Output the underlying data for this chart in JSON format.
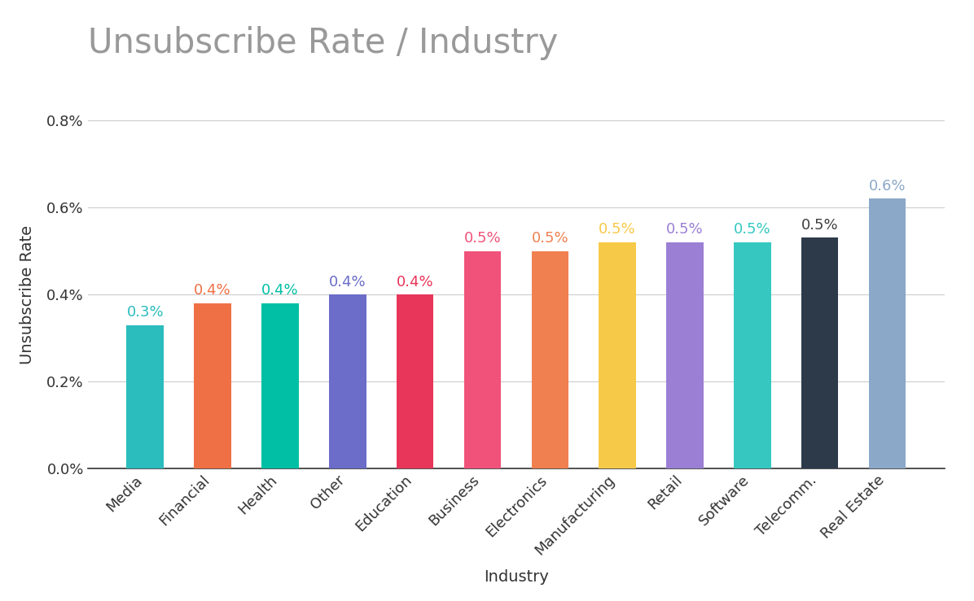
{
  "title": "Unsubscribe Rate / Industry",
  "categories": [
    "Media",
    "Financial",
    "Health",
    "Other",
    "Education",
    "Business",
    "Electronics",
    "Manufacturing",
    "Retail",
    "Software",
    "Telecomm.",
    "Real Estate"
  ],
  "values": [
    0.0033,
    0.0038,
    0.0038,
    0.004,
    0.004,
    0.005,
    0.005,
    0.0052,
    0.0052,
    0.0052,
    0.0053,
    0.0062
  ],
  "bar_colors": [
    "#2BBCBD",
    "#F07045",
    "#00BFA5",
    "#6B6DC8",
    "#E8355A",
    "#F0527A",
    "#F08050",
    "#F7C948",
    "#9B7FD4",
    "#36C8C0",
    "#2D3A4A",
    "#8BA8C8"
  ],
  "label_colors": [
    "#2BBCBD",
    "#F07045",
    "#00BFA5",
    "#6B6DC8",
    "#E8355A",
    "#F0527A",
    "#F08050",
    "#F7C948",
    "#9B7FD4",
    "#36C8C0",
    "#404040",
    "#8BA8C8"
  ],
  "labels": [
    "0.3%",
    "0.4%",
    "0.4%",
    "0.4%",
    "0.4%",
    "0.5%",
    "0.5%",
    "0.5%",
    "0.5%",
    "0.5%",
    "0.5%",
    "0.6%"
  ],
  "xlabel": "Industry",
  "ylabel": "Unsubscribe Rate",
  "ylim": [
    0,
    0.008
  ],
  "yticks": [
    0.0,
    0.002,
    0.004,
    0.006,
    0.008
  ],
  "ytick_labels": [
    "0.0%",
    "0.2%",
    "0.4%",
    "0.6%",
    "0.8%"
  ],
  "background_color": "#FFFFFF",
  "title_color": "#999999",
  "title_fontsize": 30,
  "axis_label_fontsize": 14,
  "tick_fontsize": 13,
  "bar_label_fontsize": 13
}
